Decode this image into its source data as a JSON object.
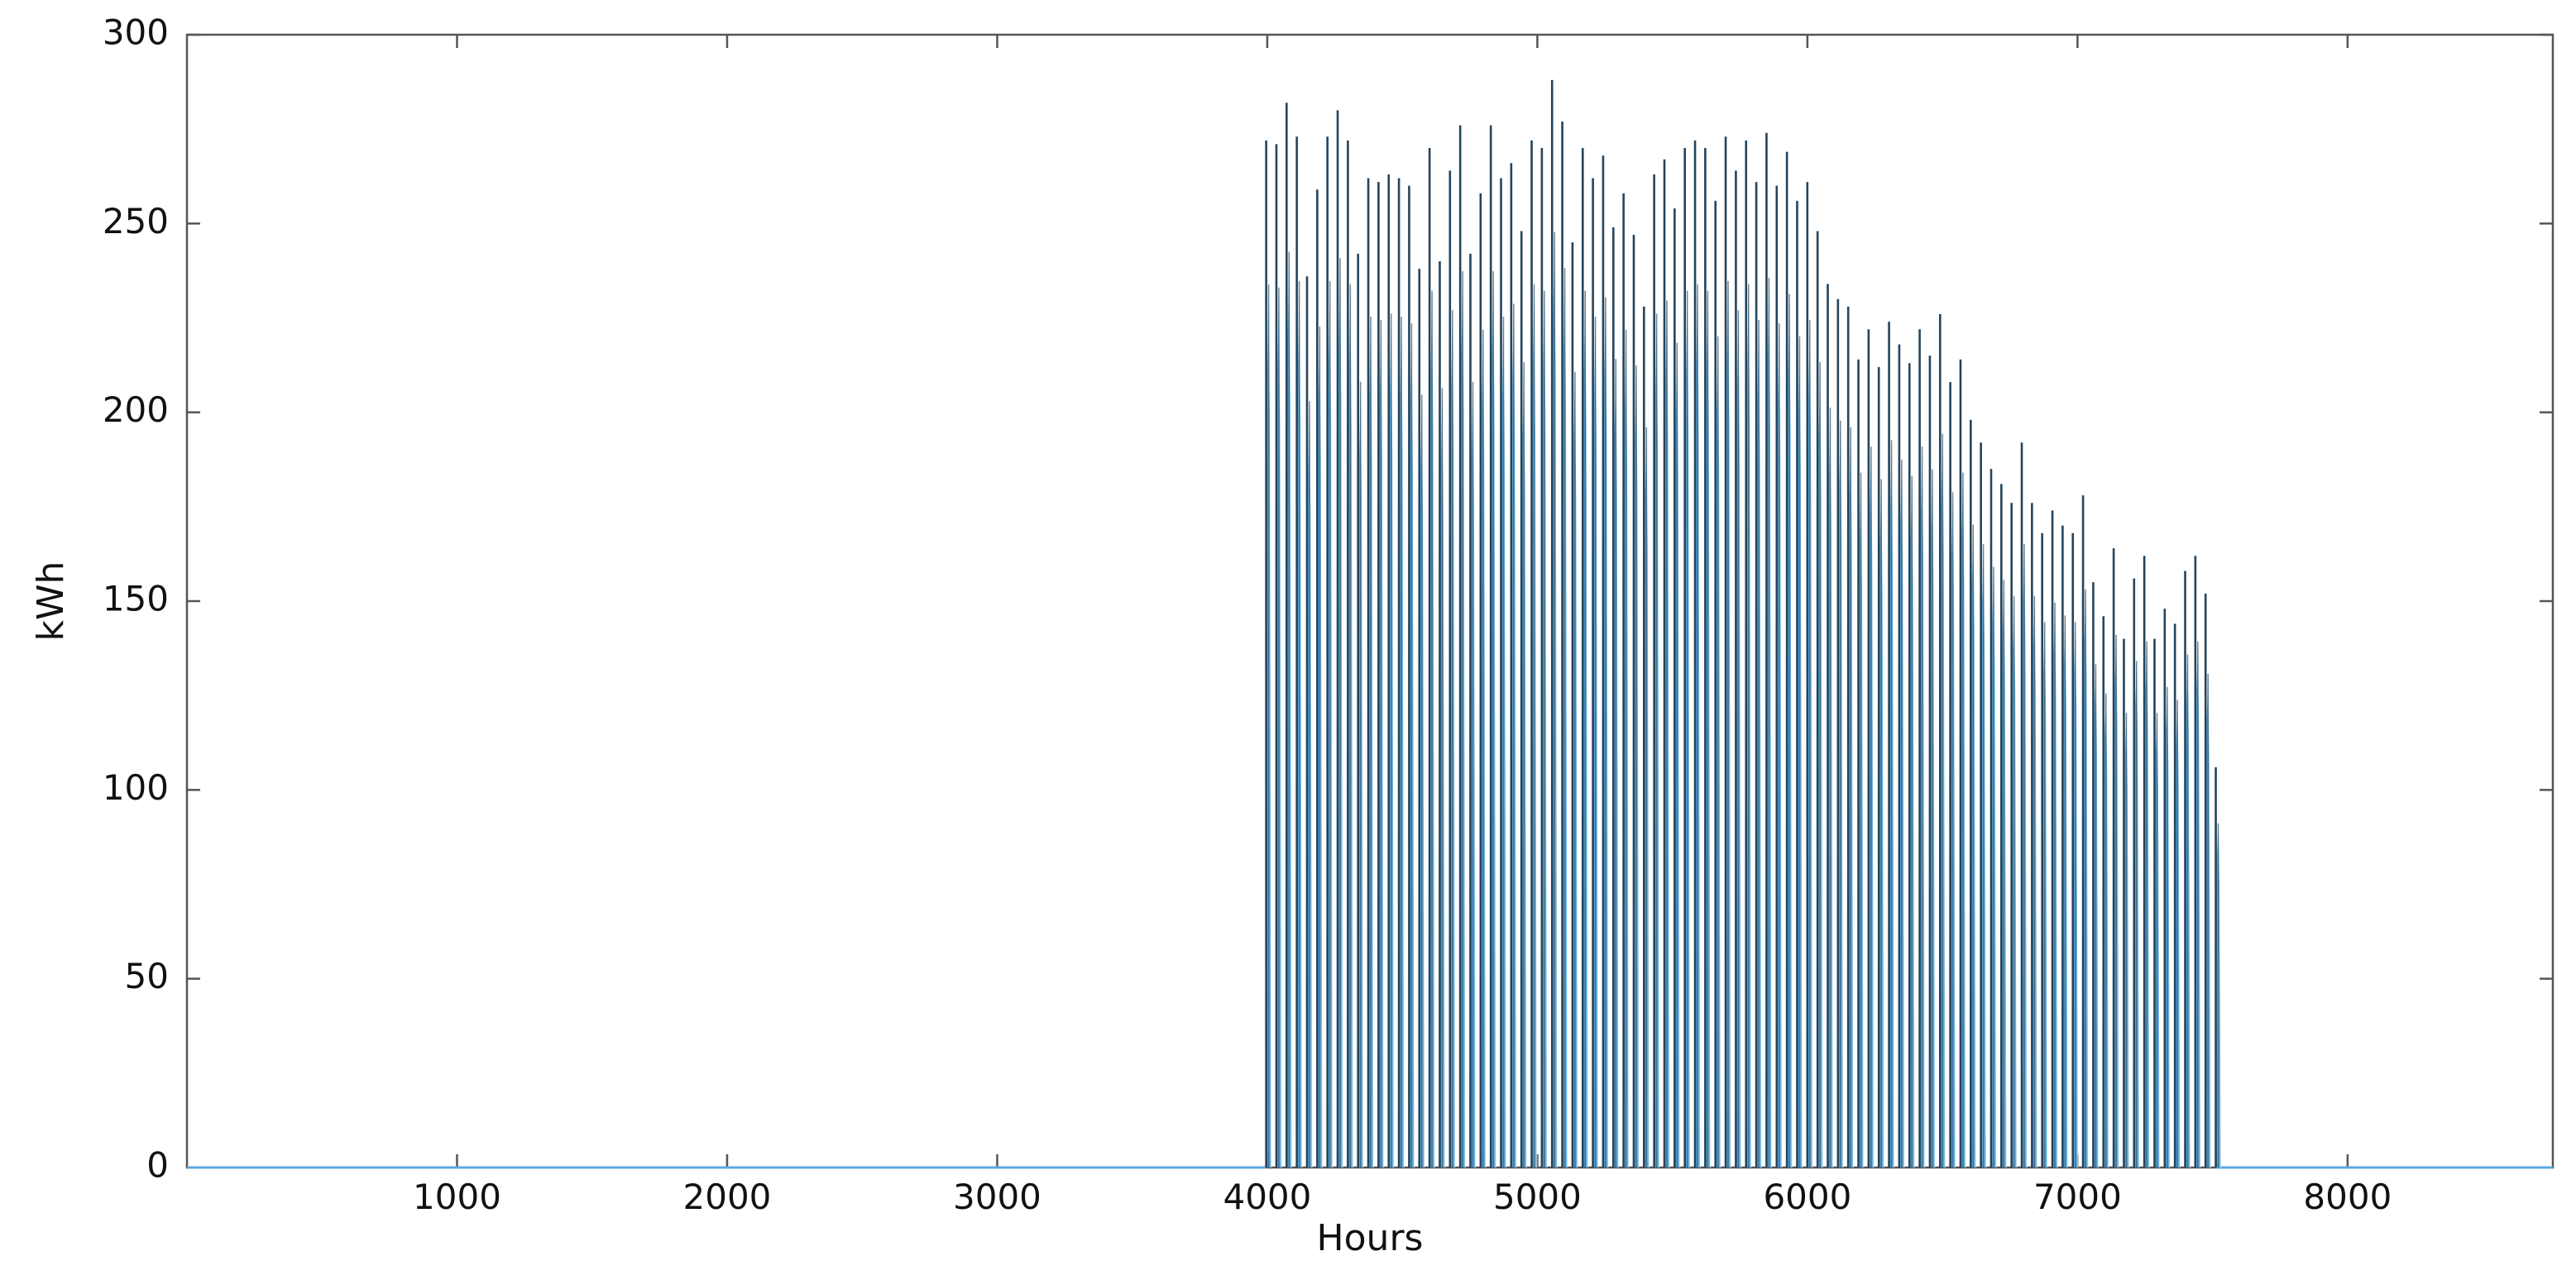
{
  "chart_data": {
    "type": "line",
    "title": "",
    "xlabel": "Hours",
    "ylabel": "kWh",
    "xlim": [
      0,
      8760
    ],
    "ylim": [
      0,
      300
    ],
    "x_ticks": [
      1000,
      2000,
      3000,
      4000,
      5000,
      6000,
      7000,
      8000
    ],
    "y_ticks": [
      0,
      50,
      100,
      150,
      200,
      250,
      300
    ],
    "grid": false,
    "legend": "none",
    "colors": {
      "series": "#5aa9dc",
      "series_dark": "#24445c",
      "axis": "#555555"
    },
    "series": [
      {
        "hours_active": [
          3996,
          7512
        ],
        "daily_peaks_kwh": [
          272,
          271,
          282,
          273,
          236,
          259,
          273,
          280,
          272,
          242,
          262,
          261,
          263,
          262,
          260,
          238,
          270,
          240,
          264,
          276,
          242,
          258,
          276,
          262,
          266,
          248,
          272,
          270,
          288,
          277,
          245,
          270,
          262,
          268,
          249,
          258,
          247,
          228,
          263,
          267,
          254,
          270,
          272,
          270,
          256,
          273,
          264,
          272,
          261,
          274,
          260,
          269,
          256,
          261,
          248,
          234,
          230,
          228,
          214,
          222,
          212,
          224,
          218,
          213,
          222,
          215,
          226,
          208,
          214,
          198,
          192,
          185,
          181,
          176,
          192,
          176,
          168,
          174,
          170,
          168,
          178,
          155,
          146,
          164,
          140,
          156,
          162,
          140,
          148,
          144,
          158,
          162,
          152,
          106
        ],
        "zero_outside_active_hours": true
      }
    ]
  }
}
